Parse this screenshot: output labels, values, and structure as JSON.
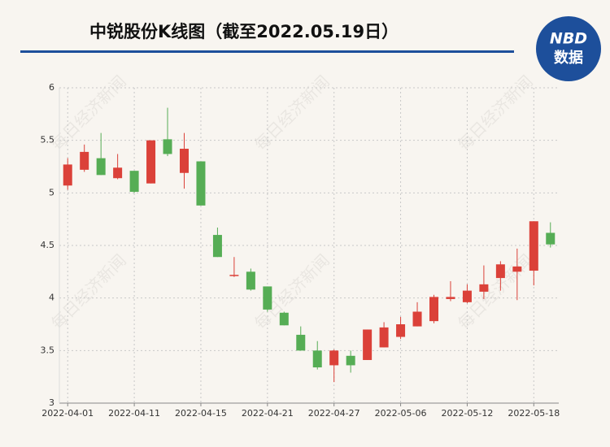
{
  "chart_data": {
    "type": "candlestick",
    "title": "中锐股份K线图（截至2022.05.19日）",
    "logo": [
      "NBD",
      "数据"
    ],
    "watermark": "每日经济新闻",
    "categories": [
      "2022-04-01",
      null,
      null,
      null,
      "2022-04-11",
      null,
      null,
      null,
      "2022-04-15",
      null,
      null,
      null,
      "2022-04-21",
      null,
      null,
      null,
      "2022-04-27",
      null,
      null,
      null,
      "2022-05-06",
      null,
      null,
      null,
      "2022-05-12",
      null,
      null,
      null,
      "2022-05-18",
      null
    ],
    "open": [
      5.07,
      5.22,
      5.33,
      5.14,
      5.21,
      5.09,
      5.51,
      5.19,
      5.3,
      4.6,
      4.21,
      4.25,
      4.11,
      3.86,
      3.65,
      3.5,
      3.36,
      3.45,
      3.41,
      3.53,
      3.63,
      3.73,
      3.78,
      3.99,
      3.96,
      4.06,
      4.19,
      4.25,
      4.26,
      4.62
    ],
    "high": [
      5.33,
      5.46,
      5.57,
      5.37,
      5.21,
      5.5,
      5.81,
      5.57,
      5.3,
      4.67,
      4.39,
      4.28,
      4.11,
      3.87,
      3.73,
      3.59,
      3.51,
      3.5,
      3.7,
      3.77,
      3.82,
      3.96,
      4.03,
      4.16,
      4.13,
      4.31,
      4.35,
      4.47,
      4.73,
      4.72
    ],
    "low": [
      5.03,
      5.2,
      5.17,
      5.13,
      5.0,
      5.09,
      5.35,
      5.04,
      4.88,
      4.39,
      4.2,
      4.07,
      3.87,
      3.74,
      3.5,
      3.32,
      3.2,
      3.29,
      3.41,
      3.53,
      3.61,
      3.73,
      3.76,
      3.97,
      3.95,
      3.99,
      4.07,
      3.98,
      4.12,
      4.48
    ],
    "close": [
      5.27,
      5.39,
      5.17,
      5.24,
      5.01,
      5.5,
      5.37,
      5.42,
      4.88,
      4.39,
      4.22,
      4.08,
      3.89,
      3.74,
      3.5,
      3.34,
      3.5,
      3.36,
      3.7,
      3.72,
      3.75,
      3.87,
      4.01,
      4.01,
      4.07,
      4.13,
      4.32,
      4.3,
      4.73,
      4.51
    ],
    "up_color": "#db4139",
    "down_color": "#56ad55",
    "ylim": [
      3,
      6
    ],
    "yticks": [
      3,
      3.5,
      4,
      4.5,
      5,
      5.5,
      6
    ],
    "grid": true
  }
}
